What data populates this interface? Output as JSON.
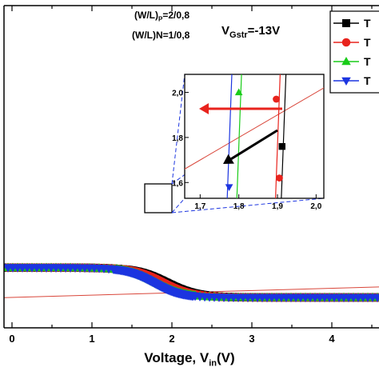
{
  "chart_data": {
    "type": "scatter",
    "xlabel": "Voltage, V",
    "xlabel_sub": "in",
    "xlabel_unit": "(V)",
    "x_ticks": [
      "0",
      "1",
      "2",
      "3",
      "4"
    ],
    "xlim": [
      -0.15,
      4.7
    ],
    "ylim": [
      -0.2,
      13.8
    ],
    "annotations": {
      "wl_p": "(W/L)",
      "wl_p_sub": "P",
      "wl_p_value": "=2/0,8",
      "wl_n": "(W/L)N=1/0,8",
      "vgstr": "V",
      "vgstr_sub": "Gstr",
      "vgstr_value": "=-13V"
    },
    "series": [
      {
        "name": "T",
        "marker": "square",
        "color": "#000000",
        "vm": 1.92,
        "k": 5.2
      },
      {
        "name": "T",
        "marker": "circle",
        "color": "#e8231d",
        "vm": 1.89,
        "k": 5.4
      },
      {
        "name": "T",
        "marker": "triangle-up",
        "color": "#19cc19",
        "vm": 1.8,
        "k": 5.6
      },
      {
        "name": "T",
        "marker": "triangle-down",
        "color": "#1c35e0",
        "vm": 1.77,
        "k": 5.8
      }
    ],
    "unity_line": {
      "color": "#d9463a",
      "slope": 1
    },
    "inset": {
      "x_ticks": [
        "1,7",
        "1,8",
        "1,9",
        "2,0"
      ],
      "y_ticks": [
        "1,6",
        "1,8",
        "2,0"
      ],
      "xlim": [
        1.66,
        2.02
      ],
      "ylim": [
        1.53,
        2.08
      ],
      "arrows": [
        {
          "color": "#e8231d",
          "direction": "left"
        },
        {
          "color": "#000000",
          "direction": "down-left"
        }
      ]
    }
  }
}
